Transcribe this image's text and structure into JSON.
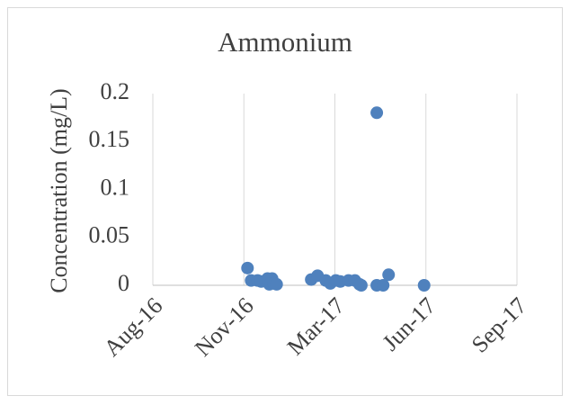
{
  "chart_data": {
    "type": "scatter",
    "title": "Ammonium",
    "y_label": "Concentration (mg/L)",
    "color": "#4f81bd",
    "x": [
      42706,
      42710,
      42717,
      42721,
      42728,
      42733,
      42730,
      42735,
      42738,
      42776,
      42783,
      42792,
      42797,
      42803,
      42808,
      42817,
      42824,
      42829,
      42831,
      42848,
      42848,
      42855,
      42861,
      42900
    ],
    "values": [
      0.018,
      0.005,
      0.005,
      0.004,
      0.007,
      0.007,
      0.001,
      0.002,
      0.001,
      0.006,
      0.01,
      0.005,
      0.002,
      0.005,
      0.004,
      0.005,
      0.005,
      0.001,
      0,
      0.18,
      0,
      0,
      0.011,
      0
    ],
    "xlim": [
      42602,
      43002
    ],
    "xticks": [
      {
        "value": 42602,
        "label": "Aug-16"
      },
      {
        "value": 42702,
        "label": "Nov-16"
      },
      {
        "value": 42802,
        "label": "Mar-17"
      },
      {
        "value": 42902,
        "label": "Jun-17"
      },
      {
        "value": 43002,
        "label": "Sep-17"
      }
    ],
    "ylim": [
      0,
      0.2
    ],
    "yticks": [
      0,
      0.05,
      0.1,
      0.15,
      0.2
    ],
    "grid": "x"
  }
}
